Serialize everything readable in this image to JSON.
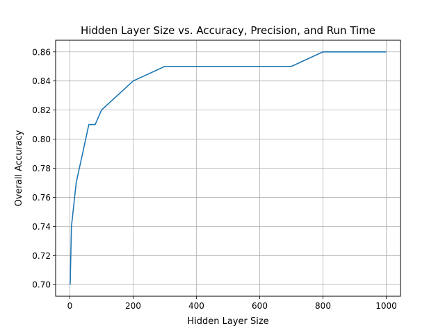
{
  "chart_data": {
    "type": "line",
    "title": "Hidden Layer Size vs. Accuracy, Precision, and Run Time",
    "xlabel": "Hidden Layer Size",
    "ylabel": "Overall Accuracy",
    "xlim": [
      -45,
      1045
    ],
    "ylim": [
      0.692,
      0.868
    ],
    "xticks": [
      0,
      200,
      400,
      600,
      800,
      1000
    ],
    "yticks": [
      0.7,
      0.72,
      0.74,
      0.76,
      0.78,
      0.8,
      0.82,
      0.84,
      0.86
    ],
    "xtick_labels": [
      "0",
      "200",
      "400",
      "600",
      "800",
      "1000"
    ],
    "ytick_labels": [
      "0.70",
      "0.72",
      "0.74",
      "0.76",
      "0.78",
      "0.80",
      "0.82",
      "0.84",
      "0.86"
    ],
    "grid": true,
    "color": "#1f77b4",
    "x": [
      1,
      5,
      10,
      20,
      40,
      60,
      80,
      100,
      200,
      300,
      400,
      500,
      600,
      700,
      800,
      900,
      1000
    ],
    "y": [
      0.7,
      0.74,
      0.75,
      0.77,
      0.79,
      0.81,
      0.81,
      0.82,
      0.84,
      0.85,
      0.85,
      0.85,
      0.85,
      0.85,
      0.86,
      0.86,
      0.86
    ]
  }
}
